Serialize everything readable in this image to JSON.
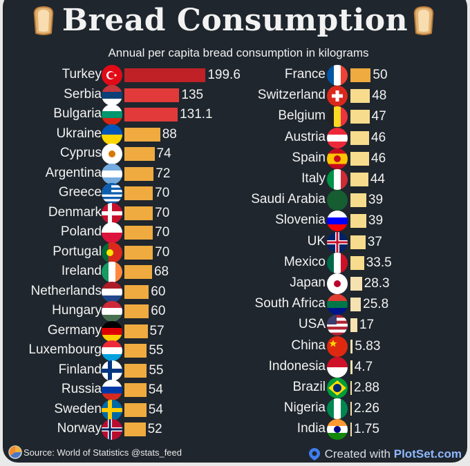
{
  "chart_data": {
    "type": "bar",
    "orientation": "horizontal",
    "title": "Bread Consumption",
    "subtitle": "Annual per capita bread consumption in kilograms",
    "unit": "kg",
    "columns": [
      [
        {
          "country": "Turkey",
          "value": 199.6,
          "label": "199.6"
        },
        {
          "country": "Serbia",
          "value": 135,
          "label": "135"
        },
        {
          "country": "Bulgaria",
          "value": 131.1,
          "label": "131.1"
        },
        {
          "country": "Ukraine",
          "value": 88,
          "label": "88"
        },
        {
          "country": "Cyprus",
          "value": 74,
          "label": "74"
        },
        {
          "country": "Argentina",
          "value": 72,
          "label": "72"
        },
        {
          "country": "Greece",
          "value": 70,
          "label": "70"
        },
        {
          "country": "Denmark",
          "value": 70,
          "label": "70"
        },
        {
          "country": "Poland",
          "value": 70,
          "label": "70"
        },
        {
          "country": "Portugal",
          "value": 70,
          "label": "70"
        },
        {
          "country": "Ireland",
          "value": 68,
          "label": "68"
        },
        {
          "country": "Netherlands",
          "value": 60,
          "label": "60"
        },
        {
          "country": "Hungary",
          "value": 60,
          "label": "60"
        },
        {
          "country": "Germany",
          "value": 57,
          "label": "57"
        },
        {
          "country": "Luxembourg",
          "value": 55,
          "label": "55"
        },
        {
          "country": "Finland",
          "value": 55,
          "label": "55"
        },
        {
          "country": "Russia",
          "value": 54,
          "label": "54"
        },
        {
          "country": "Sweden",
          "value": 54,
          "label": "54"
        },
        {
          "country": "Norway",
          "value": 52,
          "label": "52"
        }
      ],
      [
        {
          "country": "France",
          "value": 50,
          "label": "50"
        },
        {
          "country": "Switzerland",
          "value": 48,
          "label": "48"
        },
        {
          "country": "Belgium",
          "value": 47,
          "label": "47"
        },
        {
          "country": "Austria",
          "value": 46,
          "label": "46"
        },
        {
          "country": "Spain",
          "value": 46,
          "label": "46"
        },
        {
          "country": "Italy",
          "value": 44,
          "label": "44"
        },
        {
          "country": "Saudi Arabia",
          "value": 39,
          "label": "39"
        },
        {
          "country": "Slovenia",
          "value": 39,
          "label": "39"
        },
        {
          "country": "UK",
          "value": 37,
          "label": "37"
        },
        {
          "country": "Mexico",
          "value": 33.5,
          "label": "33.5"
        },
        {
          "country": "Japan",
          "value": 28.3,
          "label": "28.3"
        },
        {
          "country": "South Africa",
          "value": 25.8,
          "label": "25.8"
        },
        {
          "country": "USA",
          "value": 17,
          "label": "17"
        },
        {
          "country": "China",
          "value": 5.83,
          "label": "5.83"
        },
        {
          "country": "Indonesia",
          "value": 4.7,
          "label": "4.7"
        },
        {
          "country": "Brazil",
          "value": 2.88,
          "label": "2.88"
        },
        {
          "country": "Nigeria",
          "value": 2.26,
          "label": "2.26"
        },
        {
          "country": "India",
          "value": 1.75,
          "label": "1.75"
        }
      ]
    ],
    "colors": {
      "top": "#bf2126",
      "high": "#e23a3a",
      "mid": "#efab3f",
      "low": "#f7dc8d",
      "lowest": "#f6e2b0"
    }
  },
  "flags": {
    "Turkey": {
      "h": [
        "#e30a17"
      ],
      "sym": "crescent"
    },
    "Serbia": {
      "h": [
        "#c6363c",
        "#0c4076",
        "#ffffff"
      ]
    },
    "Bulgaria": {
      "h": [
        "#ffffff",
        "#00966e",
        "#d62612"
      ]
    },
    "Ukraine": {
      "h": [
        "#0057b7",
        "#ffd700"
      ]
    },
    "Cyprus": {
      "h": [
        "#ffffff"
      ],
      "dot": "#d57800"
    },
    "Argentina": {
      "h": [
        "#74acdf",
        "#ffffff",
        "#74acdf"
      ]
    },
    "Greece": {
      "h": [
        "#0d5eaf",
        "#ffffff",
        "#0d5eaf",
        "#ffffff",
        "#0d5eaf",
        "#ffffff",
        "#0d5eaf",
        "#ffffff",
        "#0d5eaf"
      ],
      "canton": "#0d5eaf"
    },
    "Denmark": {
      "h": [
        "#c8102e"
      ],
      "cross": [
        "#ffffff"
      ]
    },
    "Poland": {
      "h": [
        "#ffffff",
        "#dc143c"
      ]
    },
    "Portugal": {
      "v": [
        "#046a38",
        "#da291c",
        "#da291c"
      ],
      "dot": "#ffe900"
    },
    "Ireland": {
      "v": [
        "#169b62",
        "#ffffff",
        "#ff883e"
      ]
    },
    "Netherlands": {
      "h": [
        "#ae1c28",
        "#ffffff",
        "#21468b"
      ]
    },
    "Hungary": {
      "h": [
        "#ce2939",
        "#ffffff",
        "#477050"
      ]
    },
    "Germany": {
      "h": [
        "#000000",
        "#dd0000",
        "#ffce00"
      ]
    },
    "Luxembourg": {
      "h": [
        "#ed2939",
        "#ffffff",
        "#00a1de"
      ]
    },
    "Finland": {
      "h": [
        "#ffffff"
      ],
      "cross": [
        "#003580"
      ]
    },
    "Russia": {
      "h": [
        "#ffffff",
        "#0039a6",
        "#d52b1e"
      ]
    },
    "Sweden": {
      "h": [
        "#006aa7"
      ],
      "cross": [
        "#fecc00"
      ]
    },
    "Norway": {
      "h": [
        "#ba0c2f"
      ],
      "cross": [
        "#ffffff",
        "#00205b"
      ]
    },
    "France": {
      "v": [
        "#0055a4",
        "#ffffff",
        "#ef4135"
      ]
    },
    "Switzerland": {
      "h": [
        "#da291c"
      ],
      "plus": "#ffffff"
    },
    "Belgium": {
      "v": [
        "#222222",
        "#fdda24",
        "#ef3340"
      ]
    },
    "Austria": {
      "h": [
        "#ed2939",
        "#ffffff",
        "#ed2939"
      ]
    },
    "Spain": {
      "h": [
        "#c60b1e",
        "#ffc400",
        "#ffc400",
        "#c60b1e"
      ],
      "dot": "#c60b1e"
    },
    "Italy": {
      "v": [
        "#009246",
        "#ffffff",
        "#ce2b37"
      ]
    },
    "Saudi Arabia": {
      "h": [
        "#165d31"
      ]
    },
    "Slovenia": {
      "h": [
        "#ffffff",
        "#0000ff",
        "#ff0000"
      ]
    },
    "UK": {
      "h": [
        "#012169"
      ],
      "cross": [
        "#ffffff",
        "#c8102e"
      ],
      "center": true
    },
    "Mexico": {
      "v": [
        "#006847",
        "#ffffff",
        "#ce1126"
      ]
    },
    "Japan": {
      "h": [
        "#ffffff"
      ],
      "dot": "#bc002d"
    },
    "South Africa": {
      "h": [
        "#e03c31",
        "#007749",
        "#001489"
      ]
    },
    "USA": {
      "h": [
        "#b22234",
        "#ffffff",
        "#b22234",
        "#ffffff",
        "#b22234",
        "#ffffff",
        "#b22234"
      ],
      "canton": "#3c3b6e"
    },
    "China": {
      "h": [
        "#de2910"
      ],
      "star": "#ffde00"
    },
    "Indonesia": {
      "h": [
        "#ce1126",
        "#ffffff"
      ]
    },
    "Brazil": {
      "h": [
        "#009c3b"
      ],
      "diamond": "#ffdf00",
      "dot": "#002776"
    },
    "Nigeria": {
      "v": [
        "#008751",
        "#ffffff",
        "#008751"
      ]
    },
    "India": {
      "h": [
        "#ff9933",
        "#ffffff",
        "#138808"
      ],
      "dot": "#000080"
    }
  },
  "footer": {
    "source": "Source: World of Statistics  @stats_feed",
    "created_prefix": "Created with ",
    "created_brand": "PlotSet.com"
  }
}
